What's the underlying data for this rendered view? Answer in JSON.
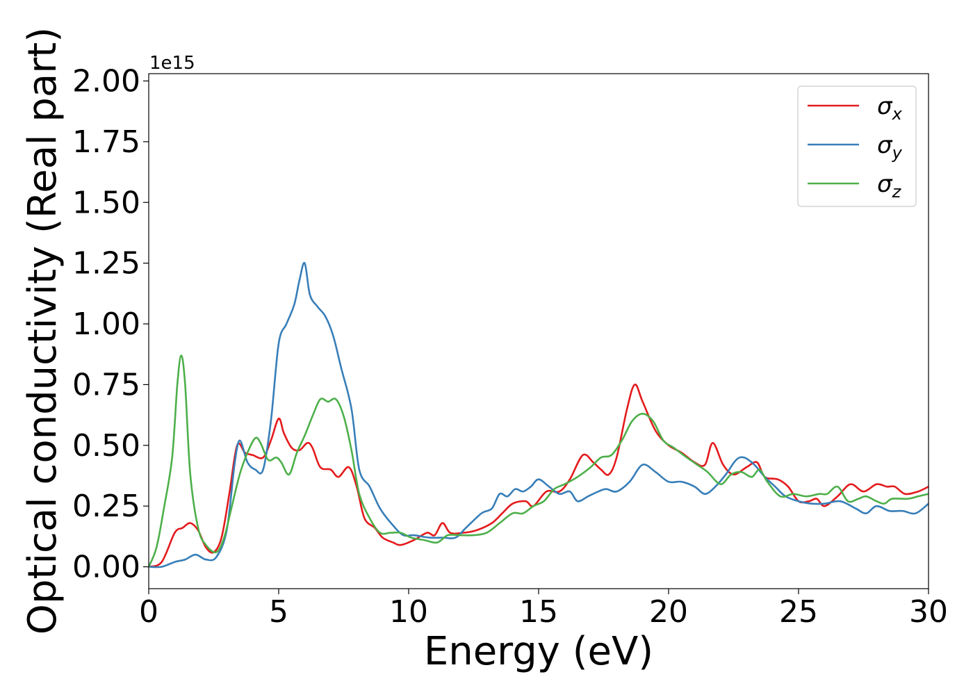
{
  "chart_data": {
    "type": "line",
    "title": "",
    "xlabel": "Energy (eV)",
    "ylabel": "Optical conductivity (Real part)",
    "y_offset_text": "1e15",
    "xlim": [
      0,
      30
    ],
    "ylim": [
      -0.09,
      2.03
    ],
    "x_ticks": [
      0,
      5,
      10,
      15,
      20,
      25,
      30
    ],
    "x_tick_labels": [
      "0",
      "5",
      "10",
      "15",
      "20",
      "25",
      "30"
    ],
    "y_ticks": [
      0,
      0.25,
      0.5,
      0.75,
      1.0,
      1.25,
      1.5,
      1.75,
      2.0
    ],
    "y_tick_labels": [
      "0.00",
      "0.25",
      "0.50",
      "0.75",
      "1.00",
      "1.25",
      "1.50",
      "1.75",
      "2.00"
    ],
    "grid": false,
    "legend_position": "top-right",
    "series": [
      {
        "name": "σ",
        "subscript": "x",
        "color": "#e41a1c",
        "points": [
          [
            0,
            0
          ],
          [
            0.5,
            0.02
          ],
          [
            1,
            0.14
          ],
          [
            1.3,
            0.16
          ],
          [
            1.6,
            0.18
          ],
          [
            1.9,
            0.15
          ],
          [
            2.2,
            0.08
          ],
          [
            2.5,
            0.06
          ],
          [
            2.8,
            0.12
          ],
          [
            3.1,
            0.3
          ],
          [
            3.4,
            0.5
          ],
          [
            3.7,
            0.47
          ],
          [
            4,
            0.46
          ],
          [
            4.4,
            0.45
          ],
          [
            4.7,
            0.52
          ],
          [
            5,
            0.61
          ],
          [
            5.2,
            0.55
          ],
          [
            5.5,
            0.49
          ],
          [
            5.8,
            0.48
          ],
          [
            6.1,
            0.51
          ],
          [
            6.3,
            0.49
          ],
          [
            6.6,
            0.41
          ],
          [
            7,
            0.4
          ],
          [
            7.3,
            0.37
          ],
          [
            7.7,
            0.41
          ],
          [
            8,
            0.33
          ],
          [
            8.3,
            0.2
          ],
          [
            8.7,
            0.16
          ],
          [
            9,
            0.12
          ],
          [
            9.4,
            0.1
          ],
          [
            9.7,
            0.09
          ],
          [
            10.2,
            0.11
          ],
          [
            10.7,
            0.14
          ],
          [
            11,
            0.13
          ],
          [
            11.3,
            0.18
          ],
          [
            11.6,
            0.14
          ],
          [
            12.1,
            0.14
          ],
          [
            12.6,
            0.15
          ],
          [
            13.2,
            0.18
          ],
          [
            13.6,
            0.22
          ],
          [
            14,
            0.26
          ],
          [
            14.5,
            0.27
          ],
          [
            14.8,
            0.25
          ],
          [
            15.3,
            0.31
          ],
          [
            15.8,
            0.31
          ],
          [
            16.2,
            0.36
          ],
          [
            16.7,
            0.46
          ],
          [
            17.1,
            0.43
          ],
          [
            17.4,
            0.4
          ],
          [
            17.7,
            0.38
          ],
          [
            18,
            0.45
          ],
          [
            18.4,
            0.65
          ],
          [
            18.7,
            0.75
          ],
          [
            19,
            0.68
          ],
          [
            19.5,
            0.56
          ],
          [
            20,
            0.5
          ],
          [
            20.5,
            0.47
          ],
          [
            21,
            0.43
          ],
          [
            21.4,
            0.42
          ],
          [
            21.7,
            0.51
          ],
          [
            22.1,
            0.42
          ],
          [
            22.5,
            0.38
          ],
          [
            23,
            0.41
          ],
          [
            23.4,
            0.43
          ],
          [
            23.7,
            0.37
          ],
          [
            24.2,
            0.36
          ],
          [
            24.6,
            0.33
          ],
          [
            25,
            0.27
          ],
          [
            25.4,
            0.27
          ],
          [
            25.7,
            0.28
          ],
          [
            26,
            0.25
          ],
          [
            26.5,
            0.29
          ],
          [
            27,
            0.34
          ],
          [
            27.5,
            0.31
          ],
          [
            28,
            0.34
          ],
          [
            28.4,
            0.33
          ],
          [
            28.7,
            0.33
          ],
          [
            29.1,
            0.3
          ],
          [
            29.6,
            0.31
          ],
          [
            30,
            0.33
          ]
        ]
      },
      {
        "name": "σ",
        "subscript": "y",
        "color": "#377eb8",
        "points": [
          [
            0,
            0
          ],
          [
            0.5,
            0.0
          ],
          [
            1,
            0.02
          ],
          [
            1.4,
            0.03
          ],
          [
            1.8,
            0.05
          ],
          [
            2.2,
            0.03
          ],
          [
            2.6,
            0.04
          ],
          [
            3,
            0.15
          ],
          [
            3.3,
            0.42
          ],
          [
            3.5,
            0.52
          ],
          [
            3.8,
            0.43
          ],
          [
            4.1,
            0.4
          ],
          [
            4.4,
            0.4
          ],
          [
            4.7,
            0.6
          ],
          [
            5,
            0.92
          ],
          [
            5.3,
            1.0
          ],
          [
            5.6,
            1.08
          ],
          [
            5.8,
            1.18
          ],
          [
            6,
            1.25
          ],
          [
            6.2,
            1.12
          ],
          [
            6.5,
            1.07
          ],
          [
            6.8,
            1.03
          ],
          [
            7.1,
            0.95
          ],
          [
            7.4,
            0.82
          ],
          [
            7.8,
            0.65
          ],
          [
            8.1,
            0.4
          ],
          [
            8.5,
            0.33
          ],
          [
            8.9,
            0.24
          ],
          [
            9.4,
            0.17
          ],
          [
            9.8,
            0.13
          ],
          [
            10.2,
            0.13
          ],
          [
            10.8,
            0.12
          ],
          [
            11.3,
            0.12
          ],
          [
            11.8,
            0.12
          ],
          [
            12.2,
            0.16
          ],
          [
            12.8,
            0.22
          ],
          [
            13.2,
            0.24
          ],
          [
            13.5,
            0.3
          ],
          [
            13.8,
            0.29
          ],
          [
            14.1,
            0.32
          ],
          [
            14.4,
            0.31
          ],
          [
            14.7,
            0.33
          ],
          [
            15,
            0.36
          ],
          [
            15.4,
            0.33
          ],
          [
            15.8,
            0.3
          ],
          [
            16.2,
            0.31
          ],
          [
            16.5,
            0.27
          ],
          [
            16.9,
            0.29
          ],
          [
            17.3,
            0.31
          ],
          [
            17.6,
            0.32
          ],
          [
            18,
            0.31
          ],
          [
            18.5,
            0.35
          ],
          [
            19,
            0.42
          ],
          [
            19.5,
            0.39
          ],
          [
            20,
            0.35
          ],
          [
            20.5,
            0.35
          ],
          [
            21,
            0.33
          ],
          [
            21.4,
            0.3
          ],
          [
            21.8,
            0.33
          ],
          [
            22.2,
            0.38
          ],
          [
            22.6,
            0.44
          ],
          [
            22.9,
            0.45
          ],
          [
            23.3,
            0.42
          ],
          [
            23.7,
            0.37
          ],
          [
            24.1,
            0.33
          ],
          [
            24.5,
            0.29
          ],
          [
            25,
            0.27
          ],
          [
            25.5,
            0.26
          ],
          [
            26,
            0.26
          ],
          [
            26.6,
            0.27
          ],
          [
            27.2,
            0.24
          ],
          [
            27.6,
            0.22
          ],
          [
            28,
            0.25
          ],
          [
            28.5,
            0.23
          ],
          [
            29,
            0.23
          ],
          [
            29.5,
            0.22
          ],
          [
            30,
            0.26
          ]
        ]
      },
      {
        "name": "σ",
        "subscript": "z",
        "color": "#4daf4a",
        "points": [
          [
            0,
            0
          ],
          [
            0.3,
            0.08
          ],
          [
            0.6,
            0.25
          ],
          [
            0.9,
            0.45
          ],
          [
            1.1,
            0.75
          ],
          [
            1.25,
            0.87
          ],
          [
            1.4,
            0.75
          ],
          [
            1.6,
            0.38
          ],
          [
            1.9,
            0.16
          ],
          [
            2.2,
            0.09
          ],
          [
            2.6,
            0.06
          ],
          [
            2.9,
            0.12
          ],
          [
            3.2,
            0.25
          ],
          [
            3.5,
            0.38
          ],
          [
            3.8,
            0.47
          ],
          [
            4.1,
            0.53
          ],
          [
            4.3,
            0.51
          ],
          [
            4.6,
            0.44
          ],
          [
            4.9,
            0.45
          ],
          [
            5.1,
            0.43
          ],
          [
            5.4,
            0.38
          ],
          [
            5.7,
            0.47
          ],
          [
            6,
            0.54
          ],
          [
            6.3,
            0.62
          ],
          [
            6.6,
            0.69
          ],
          [
            6.9,
            0.68
          ],
          [
            7.2,
            0.69
          ],
          [
            7.5,
            0.62
          ],
          [
            7.8,
            0.48
          ],
          [
            8.1,
            0.3
          ],
          [
            8.5,
            0.2
          ],
          [
            8.9,
            0.14
          ],
          [
            9.3,
            0.14
          ],
          [
            9.7,
            0.14
          ],
          [
            10.1,
            0.12
          ],
          [
            10.6,
            0.11
          ],
          [
            11.1,
            0.1
          ],
          [
            11.5,
            0.13
          ],
          [
            12,
            0.13
          ],
          [
            12.5,
            0.13
          ],
          [
            13,
            0.14
          ],
          [
            13.5,
            0.18
          ],
          [
            14,
            0.22
          ],
          [
            14.4,
            0.22
          ],
          [
            14.8,
            0.25
          ],
          [
            15.2,
            0.27
          ],
          [
            15.6,
            0.32
          ],
          [
            16,
            0.34
          ],
          [
            16.5,
            0.37
          ],
          [
            17,
            0.41
          ],
          [
            17.4,
            0.45
          ],
          [
            17.8,
            0.46
          ],
          [
            18.2,
            0.52
          ],
          [
            18.6,
            0.6
          ],
          [
            19,
            0.63
          ],
          [
            19.4,
            0.6
          ],
          [
            19.8,
            0.52
          ],
          [
            20.2,
            0.49
          ],
          [
            20.7,
            0.45
          ],
          [
            21.1,
            0.42
          ],
          [
            21.5,
            0.39
          ],
          [
            22,
            0.34
          ],
          [
            22.4,
            0.38
          ],
          [
            22.8,
            0.39
          ],
          [
            23.2,
            0.37
          ],
          [
            23.5,
            0.4
          ],
          [
            23.8,
            0.35
          ],
          [
            24.3,
            0.29
          ],
          [
            24.8,
            0.3
          ],
          [
            25.3,
            0.29
          ],
          [
            25.8,
            0.3
          ],
          [
            26.1,
            0.3
          ],
          [
            26.5,
            0.33
          ],
          [
            26.9,
            0.27
          ],
          [
            27.3,
            0.28
          ],
          [
            27.6,
            0.29
          ],
          [
            28,
            0.27
          ],
          [
            28.3,
            0.26
          ],
          [
            28.6,
            0.28
          ],
          [
            29.2,
            0.28
          ],
          [
            29.6,
            0.29
          ],
          [
            30,
            0.3
          ]
        ]
      }
    ]
  }
}
